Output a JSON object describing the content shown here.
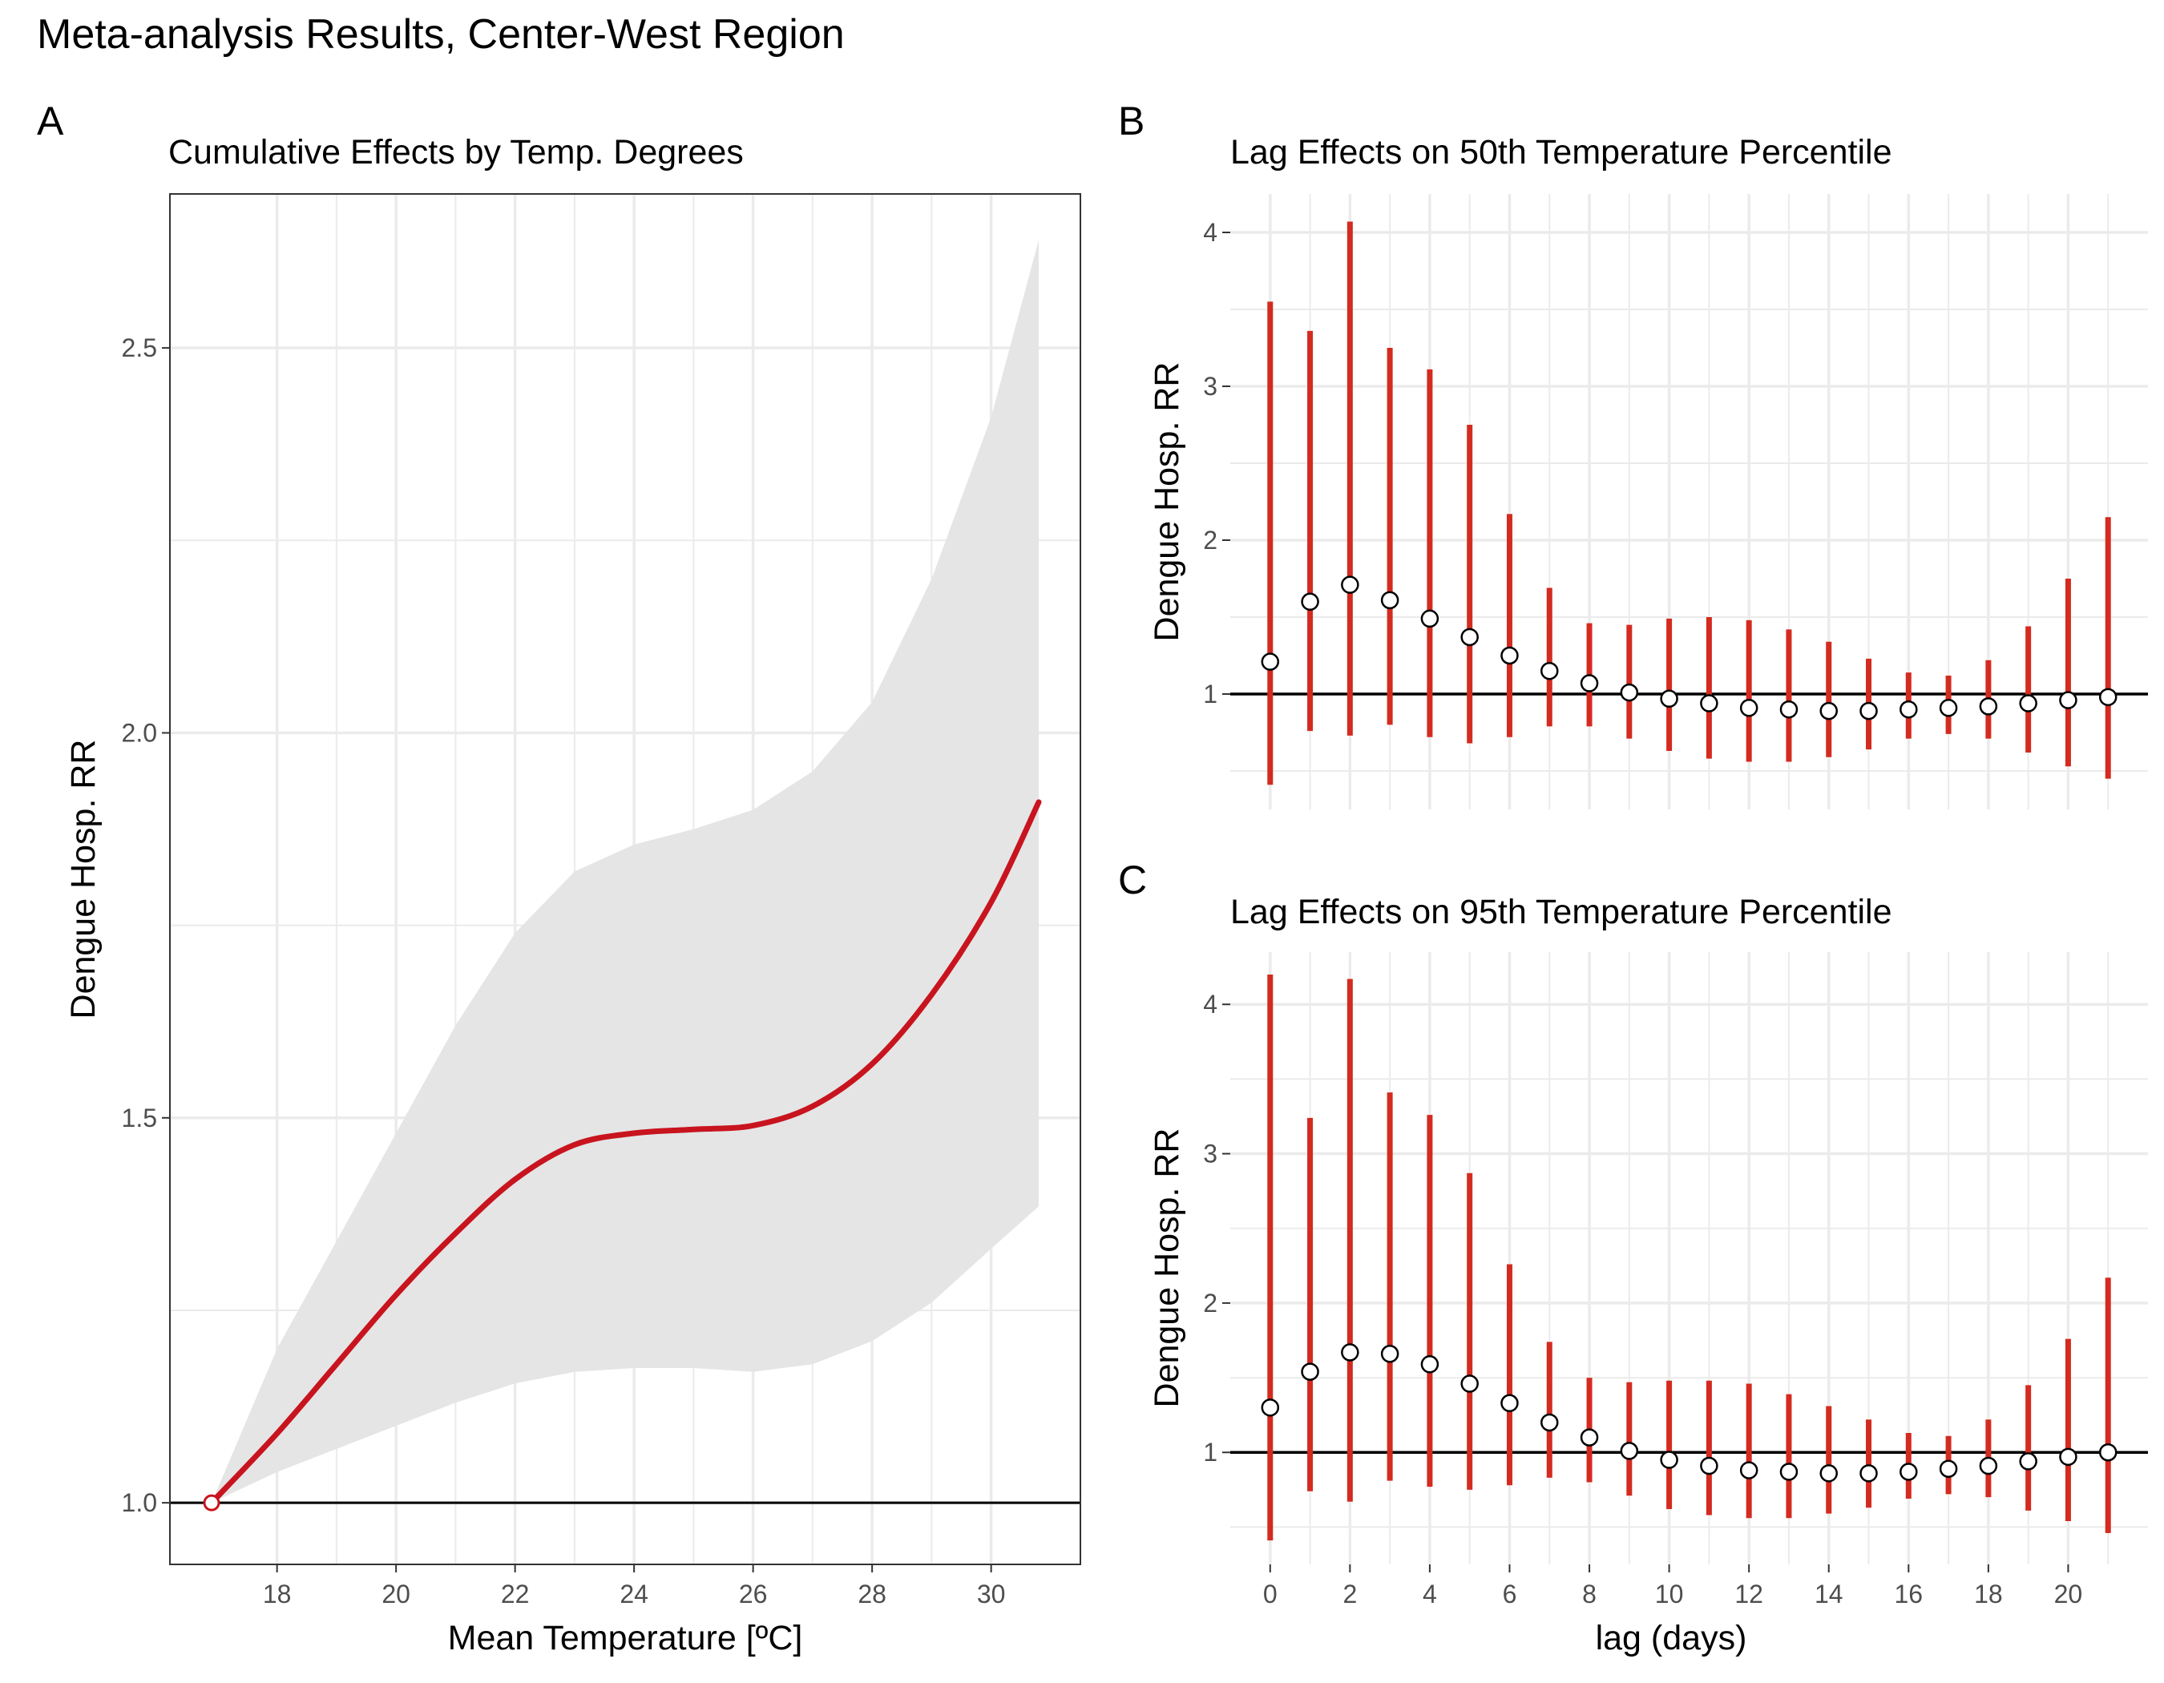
{
  "title": "Meta-analysis Results, Center-West Region",
  "colors": {
    "effect": "#c8141e",
    "ci_bar": "#d42b20",
    "ribbon": "#e5e5e5",
    "grid": "#ebebeb",
    "reference_line": "#000000",
    "point_fill": "#ffffff"
  },
  "chart_data": [
    {
      "panel": "A",
      "type": "line",
      "title": "Cumulative Effects by Temp. Degrees",
      "xlabel": "Mean Temperature [ºC]",
      "ylabel": "Dengue Hosp. RR",
      "xlim": [
        16.2,
        31.5
      ],
      "ylim": [
        0.92,
        2.7
      ],
      "x_ticks": [
        18,
        20,
        22,
        24,
        26,
        28,
        30
      ],
      "y_ticks": [
        1.0,
        1.5,
        2.0,
        2.5
      ],
      "y_tick_labels": [
        "1.0",
        "1.5",
        "2.0",
        "2.5"
      ],
      "reference_y": 1.0,
      "reference_point": {
        "x": 16.9,
        "y": 1.0
      },
      "grid": true,
      "series": [
        {
          "x": [
            16.9,
            18,
            19,
            20,
            21,
            22,
            23,
            24,
            25,
            26,
            27,
            28,
            29,
            30,
            30.8
          ],
          "y": [
            1.0,
            1.09,
            1.18,
            1.27,
            1.35,
            1.42,
            1.465,
            1.48,
            1.485,
            1.49,
            1.515,
            1.57,
            1.66,
            1.78,
            1.91
          ],
          "lower": [
            1.0,
            1.04,
            1.07,
            1.1,
            1.13,
            1.155,
            1.17,
            1.175,
            1.175,
            1.17,
            1.18,
            1.21,
            1.26,
            1.33,
            1.385
          ],
          "upper": [
            1.0,
            1.2,
            1.34,
            1.48,
            1.62,
            1.74,
            1.82,
            1.855,
            1.875,
            1.9,
            1.95,
            2.04,
            2.2,
            2.41,
            2.64
          ]
        }
      ]
    },
    {
      "panel": "B",
      "type": "scatter",
      "title": "Lag Effects on 50th Temperature Percentile",
      "xlabel": "",
      "ylabel": "Dengue Hosp. RR",
      "xlim": [
        -1.0,
        22.0
      ],
      "ylim": [
        0.25,
        4.25
      ],
      "x_ticks": [
        0,
        2,
        4,
        6,
        8,
        10,
        12,
        14,
        16,
        18,
        20
      ],
      "y_ticks": [
        1,
        2,
        3,
        4
      ],
      "reference_y": 1,
      "grid": true,
      "x": [
        0,
        1,
        2,
        3,
        4,
        5,
        6,
        7,
        8,
        9,
        10,
        11,
        12,
        13,
        14,
        15,
        16,
        17,
        18,
        19,
        20,
        21
      ],
      "y": [
        1.21,
        1.6,
        1.71,
        1.61,
        1.49,
        1.37,
        1.25,
        1.15,
        1.07,
        1.01,
        0.97,
        0.94,
        0.91,
        0.9,
        0.89,
        0.89,
        0.9,
        0.91,
        0.92,
        0.94,
        0.96,
        0.98
      ],
      "lower": [
        0.41,
        0.76,
        0.73,
        0.8,
        0.72,
        0.68,
        0.72,
        0.79,
        0.79,
        0.71,
        0.63,
        0.58,
        0.56,
        0.56,
        0.59,
        0.64,
        0.71,
        0.74,
        0.71,
        0.62,
        0.53,
        0.45
      ],
      "upper": [
        3.55,
        3.36,
        4.07,
        3.25,
        3.11,
        2.75,
        2.17,
        1.69,
        1.46,
        1.45,
        1.49,
        1.5,
        1.48,
        1.42,
        1.34,
        1.23,
        1.14,
        1.12,
        1.22,
        1.44,
        1.75,
        2.15
      ]
    },
    {
      "panel": "C",
      "type": "scatter",
      "title": "Lag Effects on 95th Temperature Percentile",
      "xlabel": "lag (days)",
      "ylabel": "Dengue Hosp. RR",
      "xlim": [
        -1.0,
        22.0
      ],
      "ylim": [
        0.25,
        4.35
      ],
      "x_ticks": [
        0,
        2,
        4,
        6,
        8,
        10,
        12,
        14,
        16,
        18,
        20
      ],
      "y_ticks": [
        1,
        2,
        3,
        4
      ],
      "reference_y": 1,
      "grid": true,
      "x": [
        0,
        1,
        2,
        3,
        4,
        5,
        6,
        7,
        8,
        9,
        10,
        11,
        12,
        13,
        14,
        15,
        16,
        17,
        18,
        19,
        20,
        21
      ],
      "y": [
        1.3,
        1.54,
        1.67,
        1.66,
        1.59,
        1.46,
        1.33,
        1.2,
        1.1,
        1.01,
        0.95,
        0.91,
        0.88,
        0.87,
        0.86,
        0.86,
        0.87,
        0.89,
        0.91,
        0.94,
        0.97,
        1.0
      ],
      "lower": [
        0.41,
        0.74,
        0.67,
        0.81,
        0.77,
        0.75,
        0.78,
        0.83,
        0.8,
        0.71,
        0.62,
        0.58,
        0.56,
        0.56,
        0.59,
        0.63,
        0.69,
        0.72,
        0.7,
        0.61,
        0.54,
        0.46
      ],
      "upper": [
        4.2,
        3.24,
        4.17,
        3.41,
        3.26,
        2.87,
        2.26,
        1.74,
        1.5,
        1.47,
        1.48,
        1.48,
        1.46,
        1.39,
        1.31,
        1.22,
        1.13,
        1.11,
        1.22,
        1.45,
        1.76,
        2.17
      ]
    }
  ]
}
